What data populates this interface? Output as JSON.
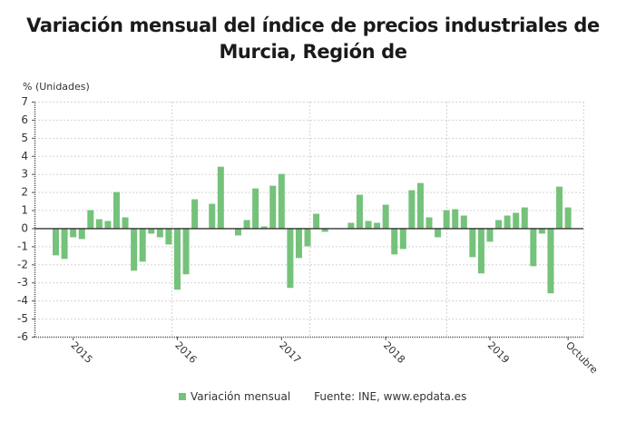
{
  "title_line1": "Variación mensual del índice de precios industriales de",
  "title_line2": "Murcia, Región de",
  "legend": {
    "series_label": "Variación mensual",
    "source": "Fuente: INE, www.epdata.es",
    "color": "#75c27b"
  },
  "chart_data": {
    "type": "bar",
    "title": "Variación mensual del índice de precios industriales de Murcia, Región de",
    "xlabel": "",
    "ylabel": "% (Unidades)",
    "ylim": [
      -6,
      7
    ],
    "yticks": [
      7,
      6,
      5,
      4,
      3,
      2,
      1,
      0,
      -1,
      -2,
      -3,
      -4,
      -5,
      -6
    ],
    "xtick_labels": [
      {
        "label": "2015",
        "index": 2
      },
      {
        "label": "2016",
        "index": 14
      },
      {
        "label": "2017",
        "index": 26
      },
      {
        "label": "2018",
        "index": 38
      },
      {
        "label": "2019",
        "index": 50
      },
      {
        "label": "Octubre",
        "index": 59
      }
    ],
    "grid": true,
    "legend_position": "bottom",
    "categories": [
      "2014-11",
      "2014-12",
      "2015-01",
      "2015-02",
      "2015-03",
      "2015-04",
      "2015-05",
      "2015-06",
      "2015-07",
      "2015-08",
      "2015-09",
      "2015-10",
      "2015-11",
      "2015-12",
      "2016-01",
      "2016-02",
      "2016-03",
      "2016-04",
      "2016-05",
      "2016-06",
      "2016-07",
      "2016-08",
      "2016-09",
      "2016-10",
      "2016-11",
      "2016-12",
      "2017-01",
      "2017-02",
      "2017-03",
      "2017-04",
      "2017-05",
      "2017-06",
      "2017-07",
      "2017-08",
      "2017-09",
      "2017-10",
      "2017-11",
      "2017-12",
      "2018-01",
      "2018-02",
      "2018-03",
      "2018-04",
      "2018-05",
      "2018-06",
      "2018-07",
      "2018-08",
      "2018-09",
      "2018-10",
      "2018-11",
      "2018-12",
      "2019-01",
      "2019-02",
      "2019-03",
      "2019-04",
      "2019-05",
      "2019-06",
      "2019-07",
      "2019-08",
      "2019-09",
      "2019-10"
    ],
    "series": [
      {
        "name": "Variación mensual",
        "color": "#75c27b",
        "values": [
          -1.5,
          -1.7,
          -0.5,
          -0.6,
          1.0,
          0.5,
          0.4,
          2.0,
          0.6,
          -2.35,
          -1.85,
          -0.3,
          -0.5,
          -0.9,
          -3.4,
          -2.55,
          1.6,
          -0.05,
          1.35,
          3.4,
          -0.05,
          -0.4,
          0.45,
          2.2,
          0.1,
          2.35,
          3.0,
          -3.3,
          -1.65,
          -1.0,
          0.8,
          -0.2,
          0.0,
          -0.05,
          0.3,
          1.85,
          0.4,
          0.3,
          1.3,
          -1.45,
          -1.15,
          2.1,
          2.5,
          0.6,
          -0.5,
          1.0,
          1.05,
          0.7,
          -1.6,
          -2.5,
          -0.75,
          0.45,
          0.7,
          0.85,
          1.15,
          -2.1,
          -0.3,
          -3.6,
          2.3,
          1.15
        ]
      }
    ]
  }
}
